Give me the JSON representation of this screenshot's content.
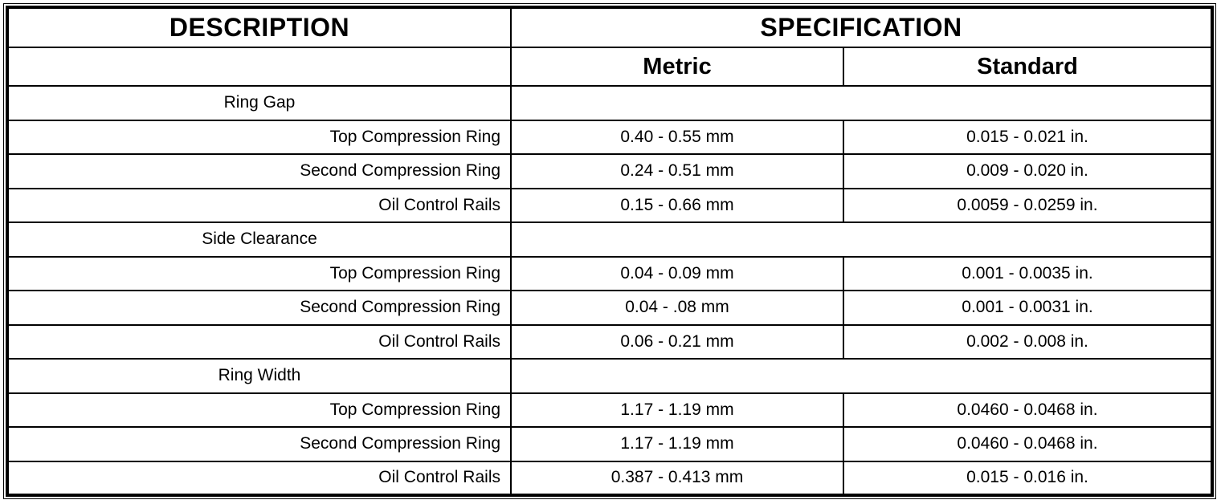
{
  "colors": {
    "border": "#000000",
    "text": "#000000",
    "background": "#ffffff"
  },
  "header": {
    "description": "DESCRIPTION",
    "specification": "SPECIFICATION",
    "metric": "Metric",
    "standard": "Standard"
  },
  "rows": [
    {
      "type": "section",
      "desc": "Ring Gap",
      "metric": "",
      "standard": ""
    },
    {
      "type": "item",
      "desc": "Top Compression Ring",
      "metric": "0.40 - 0.55 mm",
      "standard": "0.015 - 0.021 in."
    },
    {
      "type": "item",
      "desc": "Second Compression Ring",
      "metric": "0.24 - 0.51 mm",
      "standard": "0.009 - 0.020 in."
    },
    {
      "type": "item",
      "desc": "Oil Control Rails",
      "metric": "0.15 - 0.66 mm",
      "standard": "0.0059 - 0.0259 in."
    },
    {
      "type": "section",
      "desc": "Side Clearance",
      "metric": "",
      "standard": ""
    },
    {
      "type": "item",
      "desc": "Top Compression Ring",
      "metric": "0.04 - 0.09 mm",
      "standard": "0.001 - 0.0035 in."
    },
    {
      "type": "item",
      "desc": "Second Compression Ring",
      "metric": "0.04 - .08 mm",
      "standard": "0.001 - 0.0031 in."
    },
    {
      "type": "item",
      "desc": "Oil Control Rails",
      "metric": "0.06 - 0.21 mm",
      "standard": "0.002 - 0.008 in."
    },
    {
      "type": "section",
      "desc": "Ring Width",
      "metric": "",
      "standard": ""
    },
    {
      "type": "item",
      "desc": "Top Compression Ring",
      "metric": "1.17 - 1.19 mm",
      "standard": "0.0460 - 0.0468 in."
    },
    {
      "type": "item",
      "desc": "Second Compression Ring",
      "metric": "1.17 - 1.19 mm",
      "standard": "0.0460 - 0.0468 in."
    },
    {
      "type": "item",
      "desc": "Oil Control Rails",
      "metric": "0.387 - 0.413 mm",
      "standard": "0.015 - 0.016 in."
    }
  ]
}
